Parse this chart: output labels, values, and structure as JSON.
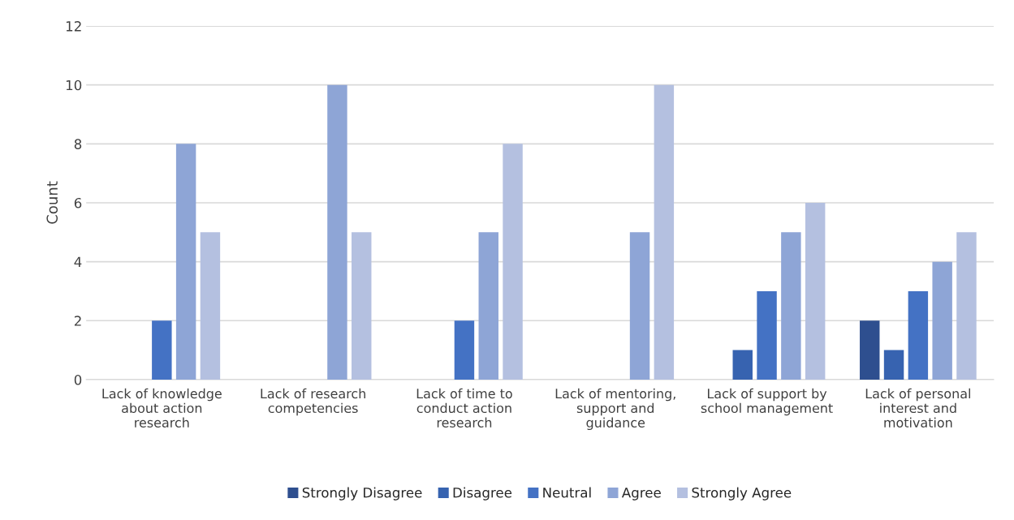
{
  "chart_data": {
    "type": "bar",
    "ylabel": "Count",
    "categories": [
      "Lack of knowledge about action research",
      "Lack of research competencies",
      "Lack of time to conduct action research",
      "Lack of mentoring, support and guidance",
      "Lack of support by school management",
      "Lack of personal interest and motivation"
    ],
    "series": [
      {
        "name": "Strongly Disagree",
        "color": "#2e4f8f",
        "values": [
          0,
          0,
          0,
          0,
          0,
          2
        ]
      },
      {
        "name": "Disagree",
        "color": "#3763b0",
        "values": [
          0,
          0,
          0,
          0,
          1,
          1
        ]
      },
      {
        "name": "Neutral",
        "color": "#4472c4",
        "values": [
          2,
          0,
          2,
          0,
          3,
          3
        ]
      },
      {
        "name": "Agree",
        "color": "#8ea5d6",
        "values": [
          8,
          10,
          5,
          5,
          5,
          4
        ]
      },
      {
        "name": "Strongly Agree",
        "color": "#b4c0e0",
        "values": [
          5,
          5,
          8,
          10,
          6,
          5
        ]
      }
    ],
    "ylim": [
      0,
      12
    ],
    "yticks": [
      0,
      2,
      4,
      6,
      8,
      10,
      12
    ],
    "grid": "y",
    "legend": "bottom"
  }
}
